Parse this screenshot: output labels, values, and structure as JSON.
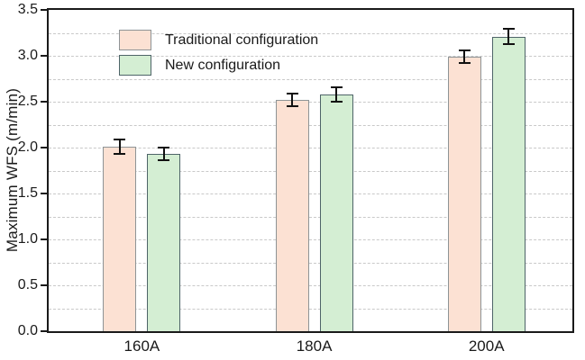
{
  "chart_data": {
    "type": "bar",
    "title": "",
    "xlabel": "",
    "ylabel": "Maximum WFS (m/min)",
    "categories": [
      "160A",
      "180A",
      "200A"
    ],
    "series": [
      {
        "name": "Traditional configuration",
        "values": [
          2.01,
          2.52,
          2.99
        ],
        "errors": [
          0.08,
          0.07,
          0.07
        ],
        "fill": "#fce1d3",
        "edge": "#8e9496"
      },
      {
        "name": "New configuration",
        "values": [
          1.93,
          2.58,
          3.21
        ],
        "errors": [
          0.07,
          0.08,
          0.08
        ],
        "fill": "#d4eed3",
        "edge": "#4e6468"
      }
    ],
    "ylim": [
      0,
      3.5
    ],
    "yticks": [
      "0.0",
      "0.5",
      "1.0",
      "1.5",
      "2.0",
      "2.5",
      "3.0",
      "3.5"
    ],
    "ytick_step": 0.5,
    "grid": true,
    "grid_step": 0.25,
    "legend_position": "upper-left",
    "colors": {
      "frame": "#1a1a1a",
      "grid": "#c9c9c9",
      "error_bar": "#111111",
      "text": "#1a1a1a"
    }
  }
}
